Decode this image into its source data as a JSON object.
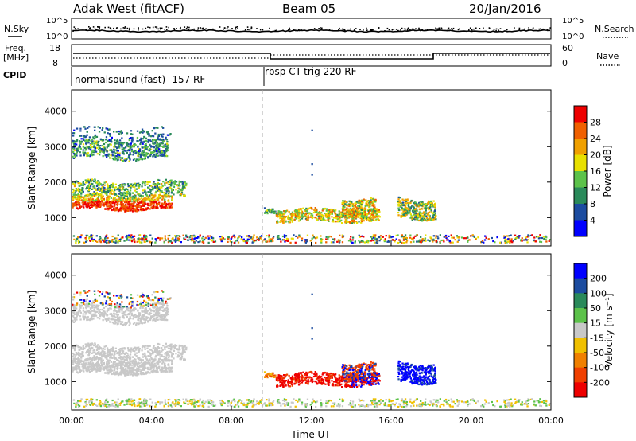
{
  "header": {
    "station": "Adak West (fitACF)",
    "beam": "Beam 05",
    "date": "20/Jan/2016"
  },
  "strips": {
    "nsky_label": "N.Sky",
    "nsearch_label": "N.Search",
    "noise_ticks_left": [
      "10^5",
      "10^0"
    ],
    "noise_ticks_right": [
      "10^5",
      "10^0"
    ],
    "freq_label_top": "Freq.",
    "freq_label_unit": "[MHz]",
    "freq_ticks": [
      "18",
      "8"
    ],
    "nave_label": "Nave",
    "nave_ticks": [
      "60",
      "0"
    ],
    "cpid_label": "CPID",
    "cpid_segments": [
      "normalsound (fast) -157 RF",
      "rbsp CT-trig 220 RF"
    ],
    "cpid_change_hour": 9.5
  },
  "chart_data": [
    {
      "type": "heatmap",
      "panel": "power",
      "ylabel": "Slant Range [km]",
      "xlabel": "",
      "x_ticks": [
        "00:00",
        "04:00",
        "08:00",
        "12:00",
        "16:00",
        "20:00",
        "00:00"
      ],
      "y_ticks": [
        "1000",
        "2000",
        "3000",
        "4000"
      ],
      "xlim_hours": [
        0,
        24
      ],
      "ylim_km": [
        200,
        4600
      ],
      "colorbar_label": "Power [dB]",
      "colorbar_ticks": [
        "4",
        "8",
        "12",
        "16",
        "20",
        "24",
        "28"
      ],
      "colorbar_range": [
        0,
        32
      ],
      "colors": [
        "#0000ff",
        "#1c4ca0",
        "#2a8a5a",
        "#5cc24a",
        "#e8e000",
        "#f0a000",
        "#f06000",
        "#ee0000"
      ]
    },
    {
      "type": "heatmap",
      "panel": "velocity",
      "ylabel": "Slant Range [km]",
      "xlabel": "Time UT",
      "x_ticks": [
        "00:00",
        "04:00",
        "08:00",
        "12:00",
        "16:00",
        "20:00",
        "00:00"
      ],
      "y_ticks": [
        "1000",
        "2000",
        "3000",
        "4000"
      ],
      "xlim_hours": [
        0,
        24
      ],
      "ylim_km": [
        200,
        4600
      ],
      "colorbar_label": "Velocity [m s⁻¹]",
      "colorbar_ticks": [
        "200",
        "100",
        "50",
        "15",
        "-15",
        "-50",
        "-100",
        "-200"
      ],
      "colors": [
        "#0000ff",
        "#1c4ca0",
        "#2a8a5a",
        "#5cc24a",
        "#c8c8c8",
        "#f0c000",
        "#f08000",
        "#f04000",
        "#ee0000"
      ]
    }
  ]
}
